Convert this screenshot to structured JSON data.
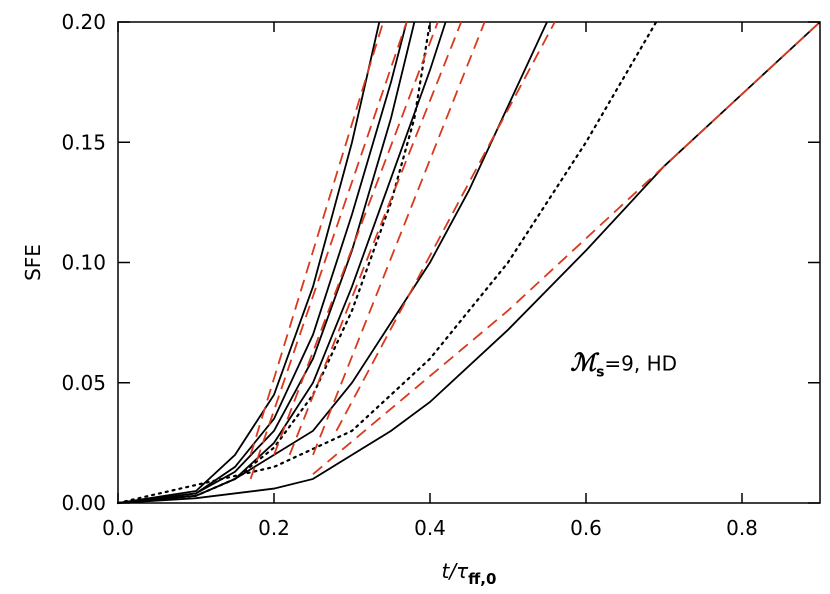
{
  "chart_data": {
    "type": "line",
    "xlabel": {
      "text": "t/τ",
      "subscript": "ff,0"
    },
    "ylabel": "SFE",
    "annotation": {
      "symbol": "ℳ",
      "subscript": "s",
      "text": "=9,  HD",
      "x": 0.58,
      "y": 0.055
    },
    "xlim": [
      0,
      0.9
    ],
    "ylim": [
      0,
      0.2
    ],
    "xticks": [
      {
        "value": 0,
        "label": "0.0"
      },
      {
        "value": 0.2,
        "label": "0.2"
      },
      {
        "value": 0.4,
        "label": "0.4"
      },
      {
        "value": 0.6,
        "label": "0.6"
      },
      {
        "value": 0.8,
        "label": "0.8"
      }
    ],
    "yticks": [
      {
        "value": 0,
        "label": "0.00"
      },
      {
        "value": 0.05,
        "label": "0.05"
      },
      {
        "value": 0.1,
        "label": "0.10"
      },
      {
        "value": 0.15,
        "label": "0.15"
      },
      {
        "value": 0.2,
        "label": "0.20"
      }
    ],
    "series": [
      {
        "color": "#000000",
        "style": "solid",
        "x": [
          0,
          0.1,
          0.15,
          0.2,
          0.25,
          0.3,
          0.335
        ],
        "values": [
          0,
          0.005,
          0.02,
          0.045,
          0.09,
          0.15,
          0.2
        ]
      },
      {
        "color": "#000000",
        "style": "solid",
        "x": [
          0,
          0.1,
          0.15,
          0.2,
          0.25,
          0.3,
          0.35,
          0.37
        ],
        "values": [
          0,
          0.004,
          0.015,
          0.035,
          0.07,
          0.12,
          0.175,
          0.2
        ]
      },
      {
        "color": "#000000",
        "style": "solid",
        "x": [
          0,
          0.1,
          0.15,
          0.2,
          0.25,
          0.3,
          0.35,
          0.38
        ],
        "values": [
          0,
          0.004,
          0.013,
          0.03,
          0.06,
          0.105,
          0.16,
          0.2
        ]
      },
      {
        "color": "#000000",
        "style": "solid",
        "x": [
          0,
          0.1,
          0.15,
          0.2,
          0.25,
          0.3,
          0.35,
          0.4,
          0.42
        ],
        "values": [
          0,
          0.003,
          0.01,
          0.025,
          0.05,
          0.09,
          0.135,
          0.18,
          0.2
        ]
      },
      {
        "color": "#000000",
        "style": "solid",
        "x": [
          0,
          0.1,
          0.15,
          0.2,
          0.25,
          0.3,
          0.35,
          0.4,
          0.45,
          0.5,
          0.55
        ],
        "values": [
          0,
          0.003,
          0.01,
          0.02,
          0.03,
          0.05,
          0.075,
          0.1,
          0.13,
          0.165,
          0.2
        ]
      },
      {
        "color": "#000000",
        "style": "solid",
        "x": [
          0,
          0.1,
          0.2,
          0.25,
          0.3,
          0.35,
          0.4,
          0.5,
          0.6,
          0.7,
          0.8,
          0.9
        ],
        "values": [
          0,
          0.002,
          0.006,
          0.01,
          0.02,
          0.03,
          0.042,
          0.072,
          0.105,
          0.14,
          0.17,
          0.2
        ]
      },
      {
        "color": "#000000",
        "style": "dotted",
        "x": [
          0,
          0.1,
          0.15,
          0.2,
          0.25,
          0.3,
          0.35,
          0.38,
          0.4
        ],
        "values": [
          0,
          0.003,
          0.01,
          0.023,
          0.045,
          0.08,
          0.125,
          0.16,
          0.2
        ]
      },
      {
        "color": "#000000",
        "style": "dotted",
        "x": [
          0,
          0.2,
          0.3,
          0.4,
          0.5,
          0.6,
          0.69
        ],
        "values": [
          0,
          0.015,
          0.03,
          0.06,
          0.1,
          0.15,
          0.2
        ]
      },
      {
        "color": "#d93a1e",
        "style": "dashed",
        "x": [
          0.17,
          0.34
        ],
        "values": [
          0.02,
          0.2
        ]
      },
      {
        "color": "#d93a1e",
        "style": "dashed",
        "x": [
          0.17,
          0.37
        ],
        "values": [
          0.01,
          0.2
        ]
      },
      {
        "color": "#d93a1e",
        "style": "dashed",
        "x": [
          0.2,
          0.41
        ],
        "values": [
          0.02,
          0.2
        ]
      },
      {
        "color": "#d93a1e",
        "style": "dashed",
        "x": [
          0.22,
          0.44
        ],
        "values": [
          0.02,
          0.2
        ]
      },
      {
        "color": "#d93a1e",
        "style": "dashed",
        "x": [
          0.25,
          0.47
        ],
        "values": [
          0.02,
          0.2
        ]
      },
      {
        "color": "#d93a1e",
        "style": "dashed",
        "x": [
          0.28,
          0.56
        ],
        "values": [
          0.03,
          0.2
        ]
      },
      {
        "color": "#d93a1e",
        "style": "dashed",
        "x": [
          0.25,
          0.5,
          0.9
        ],
        "values": [
          0.012,
          0.08,
          0.2
        ]
      }
    ]
  }
}
